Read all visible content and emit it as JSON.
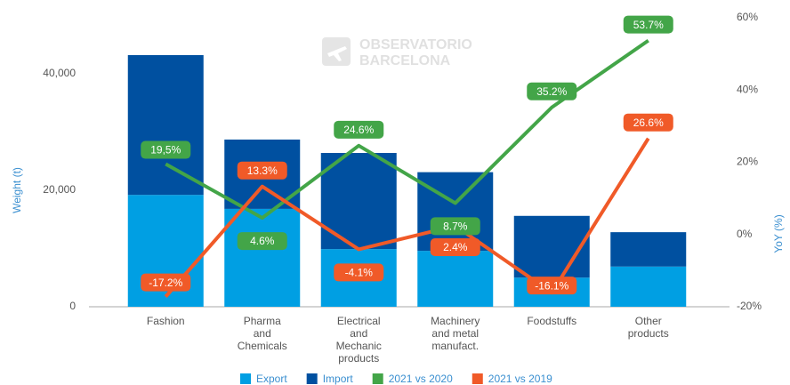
{
  "chart_data": {
    "type": "bar",
    "stacked": true,
    "watermark": [
      "OBSERVATORIO",
      "BARCELONA"
    ],
    "y_label": "Weight (t)",
    "y2_label": "YoY (%)",
    "categories": [
      "Fashion",
      "Pharma\nand\nChemicals",
      "Electrical\nand\nMechanic\nproducts",
      "Machinery\nand metal\nmanufact.",
      "Foodstuffs",
      "Other\nproducts"
    ],
    "series": [
      {
        "name": "Export",
        "type": "bar",
        "color": "#009fe3",
        "values": [
          19200,
          16800,
          9900,
          9600,
          5000,
          6900
        ]
      },
      {
        "name": "Import",
        "type": "bar",
        "color": "#0050a0",
        "values": [
          24000,
          11900,
          16500,
          13500,
          10600,
          5900
        ]
      },
      {
        "name": "2021 vs 2020",
        "type": "line",
        "axis": "y2",
        "color": "#43a548",
        "values": [
          19.5,
          4.6,
          24.6,
          8.7,
          35.2,
          53.7
        ],
        "value_labels": [
          "19,5%",
          "4.6%",
          "24.6%",
          "8.7%",
          "35.2%",
          "53.7%"
        ]
      },
      {
        "name": "2021 vs 2019",
        "type": "line",
        "axis": "y2",
        "color": "#f05a28",
        "values": [
          -17.2,
          13.3,
          -4.1,
          2.4,
          -16.1,
          26.6
        ],
        "value_labels": [
          "-17.2%",
          "13.3%",
          "-4.1%",
          "2.4%",
          "-16.1%",
          "26.6%"
        ]
      }
    ],
    "ylim": [
      0,
      49600
    ],
    "yticks": [
      0,
      {
        "value": 20000,
        "label": "20,000"
      },
      {
        "value": 40000,
        "label": "40,000"
      }
    ],
    "y2lim": [
      -20,
      60
    ],
    "y2ticks": [
      {
        "value": -20,
        "label": "-20%"
      },
      {
        "value": 0,
        "label": "0%"
      },
      {
        "value": 20,
        "label": "20%"
      },
      {
        "value": 40,
        "label": "40%"
      },
      {
        "value": 60,
        "label": "60%"
      }
    ],
    "grid": false,
    "legend": "bottom"
  }
}
